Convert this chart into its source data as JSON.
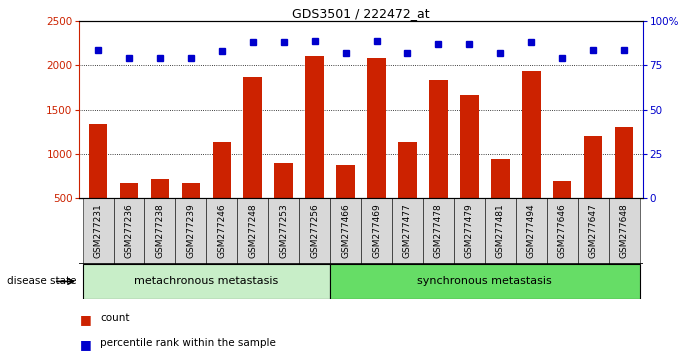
{
  "title": "GDS3501 / 222472_at",
  "samples": [
    "GSM277231",
    "GSM277236",
    "GSM277238",
    "GSM277239",
    "GSM277246",
    "GSM277248",
    "GSM277253",
    "GSM277256",
    "GSM277466",
    "GSM277469",
    "GSM277477",
    "GSM277478",
    "GSM277479",
    "GSM277481",
    "GSM277494",
    "GSM277646",
    "GSM277647",
    "GSM277648"
  ],
  "counts": [
    1340,
    670,
    720,
    670,
    1130,
    1870,
    900,
    2110,
    870,
    2080,
    1130,
    1840,
    1670,
    940,
    1940,
    690,
    1200,
    1300
  ],
  "percentile": [
    84,
    79,
    79,
    79,
    83,
    88,
    88,
    89,
    82,
    89,
    82,
    87,
    87,
    82,
    88,
    79,
    84,
    84
  ],
  "group1_label": "metachronous metastasis",
  "group1_count": 8,
  "group2_label": "synchronous metastasis",
  "group2_count": 10,
  "bar_color": "#cc2200",
  "dot_color": "#0000cc",
  "ylim_left": [
    500,
    2500
  ],
  "ylim_right": [
    0,
    100
  ],
  "yticks_left": [
    500,
    1000,
    1500,
    2000,
    2500
  ],
  "yticks_right": [
    0,
    25,
    50,
    75,
    100
  ],
  "tick_bg_color": "#d8d8d8",
  "group1_bg": "#c8eec8",
  "group2_bg": "#66dd66",
  "disease_state_label": "disease state",
  "legend_count_label": "count",
  "legend_percentile_label": "percentile rank within the sample"
}
